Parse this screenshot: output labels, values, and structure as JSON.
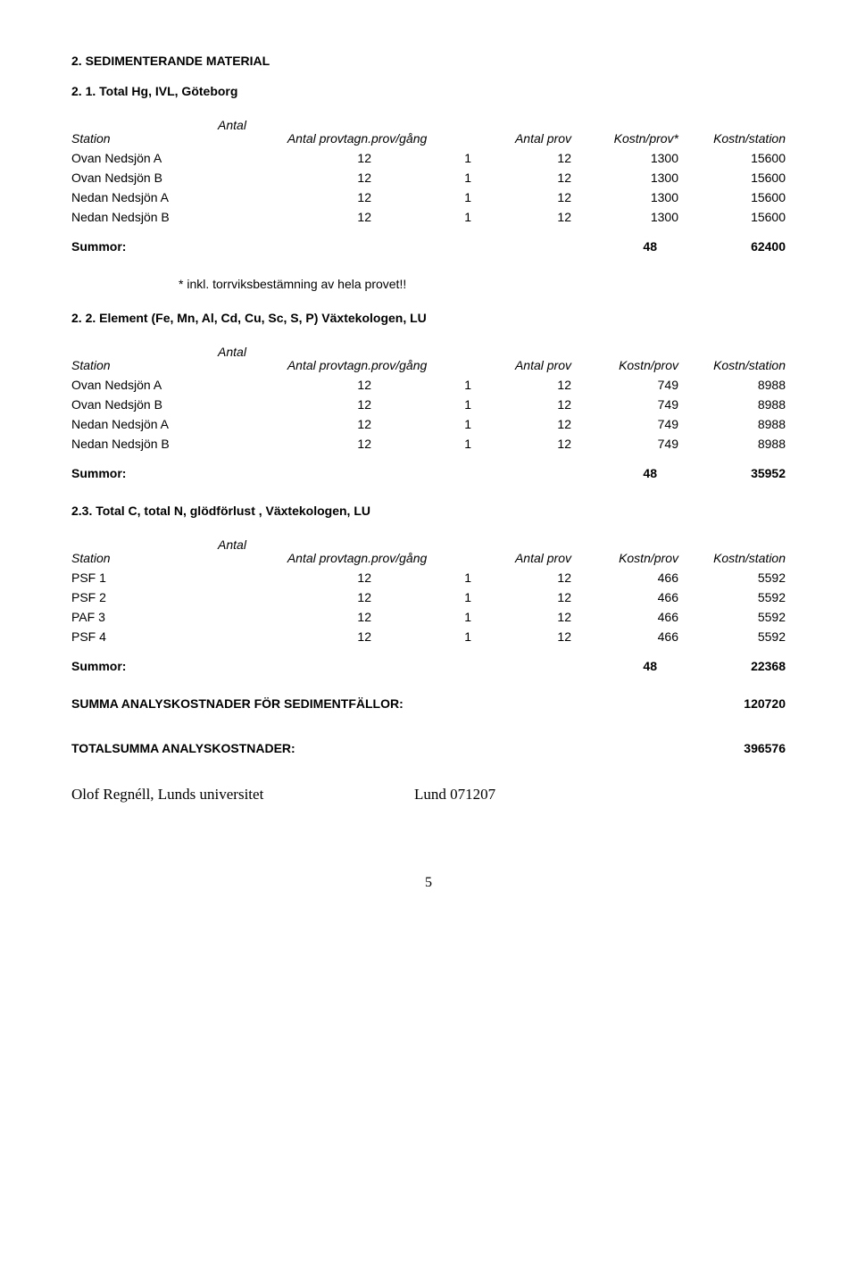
{
  "section_heading": "2. SEDIMENTERANDE MATERIAL",
  "sub1": {
    "title": "2. 1. Total Hg,  IVL, Göteborg",
    "antal_label": "Antal",
    "headers": [
      "Station",
      "Antal provtagn.",
      "prov/gång",
      "Antal prov",
      "Kostn/prov*",
      "Kostn/station"
    ],
    "rows": [
      [
        "Ovan Nedsjön A",
        "12",
        "1",
        "12",
        "1300",
        "15600"
      ],
      [
        "Ovan Nedsjön B",
        "12",
        "1",
        "12",
        "1300",
        "15600"
      ],
      [
        "Nedan Nedsjön A",
        "12",
        "1",
        "12",
        "1300",
        "15600"
      ],
      [
        "Nedan Nedsjön B",
        "12",
        "1",
        "12",
        "1300",
        "15600"
      ]
    ],
    "summor_label": "Summor:",
    "summor_v1": "48",
    "summor_v2": "62400",
    "note": "* inkl. torrviksbestämning av hela provet!!"
  },
  "sub2": {
    "title": "2. 2. Element (Fe, Mn, Al, Cd, Cu, Sc, S, P)  Växtekologen, LU",
    "antal_label": "Antal",
    "headers": [
      "Station",
      "Antal provtagn.",
      "prov/gång",
      "Antal prov",
      "Kostn/prov",
      "Kostn/station"
    ],
    "rows": [
      [
        "Ovan Nedsjön A",
        "12",
        "1",
        "12",
        "749",
        "8988"
      ],
      [
        "Ovan Nedsjön B",
        "12",
        "1",
        "12",
        "749",
        "8988"
      ],
      [
        "Nedan Nedsjön A",
        "12",
        "1",
        "12",
        "749",
        "8988"
      ],
      [
        "Nedan Nedsjön B",
        "12",
        "1",
        "12",
        "749",
        "8988"
      ]
    ],
    "summor_label": "Summor:",
    "summor_v1": "48",
    "summor_v2": "35952"
  },
  "sub3": {
    "title": "2.3. Total C, total N, glödförlust , Växtekologen, LU",
    "antal_label": "Antal",
    "headers": [
      "Station",
      "Antal provtagn.",
      "prov/gång",
      "Antal prov",
      "Kostn/prov",
      "Kostn/station"
    ],
    "rows": [
      [
        "PSF 1",
        "12",
        "1",
        "12",
        "466",
        "5592"
      ],
      [
        "PSF 2",
        "12",
        "1",
        "12",
        "466",
        "5592"
      ],
      [
        "PAF 3",
        "12",
        "1",
        "12",
        "466",
        "5592"
      ],
      [
        "PSF 4",
        "12",
        "1",
        "12",
        "466",
        "5592"
      ]
    ],
    "summor_label": "Summor:",
    "summor_v1": "48",
    "summor_v2": "22368"
  },
  "summa_sediment": {
    "label": "SUMMA ANALYSKOSTNADER FÖR SEDIMENTFÄLLOR:",
    "value": "120720"
  },
  "totalsumma": {
    "label": "TOTALSUMMA ANALYSKOSTNADER:",
    "value": "396576"
  },
  "footer": {
    "left": "Olof Regnéll, Lunds universitet",
    "right": "Lund  071207"
  },
  "page_number": "5"
}
